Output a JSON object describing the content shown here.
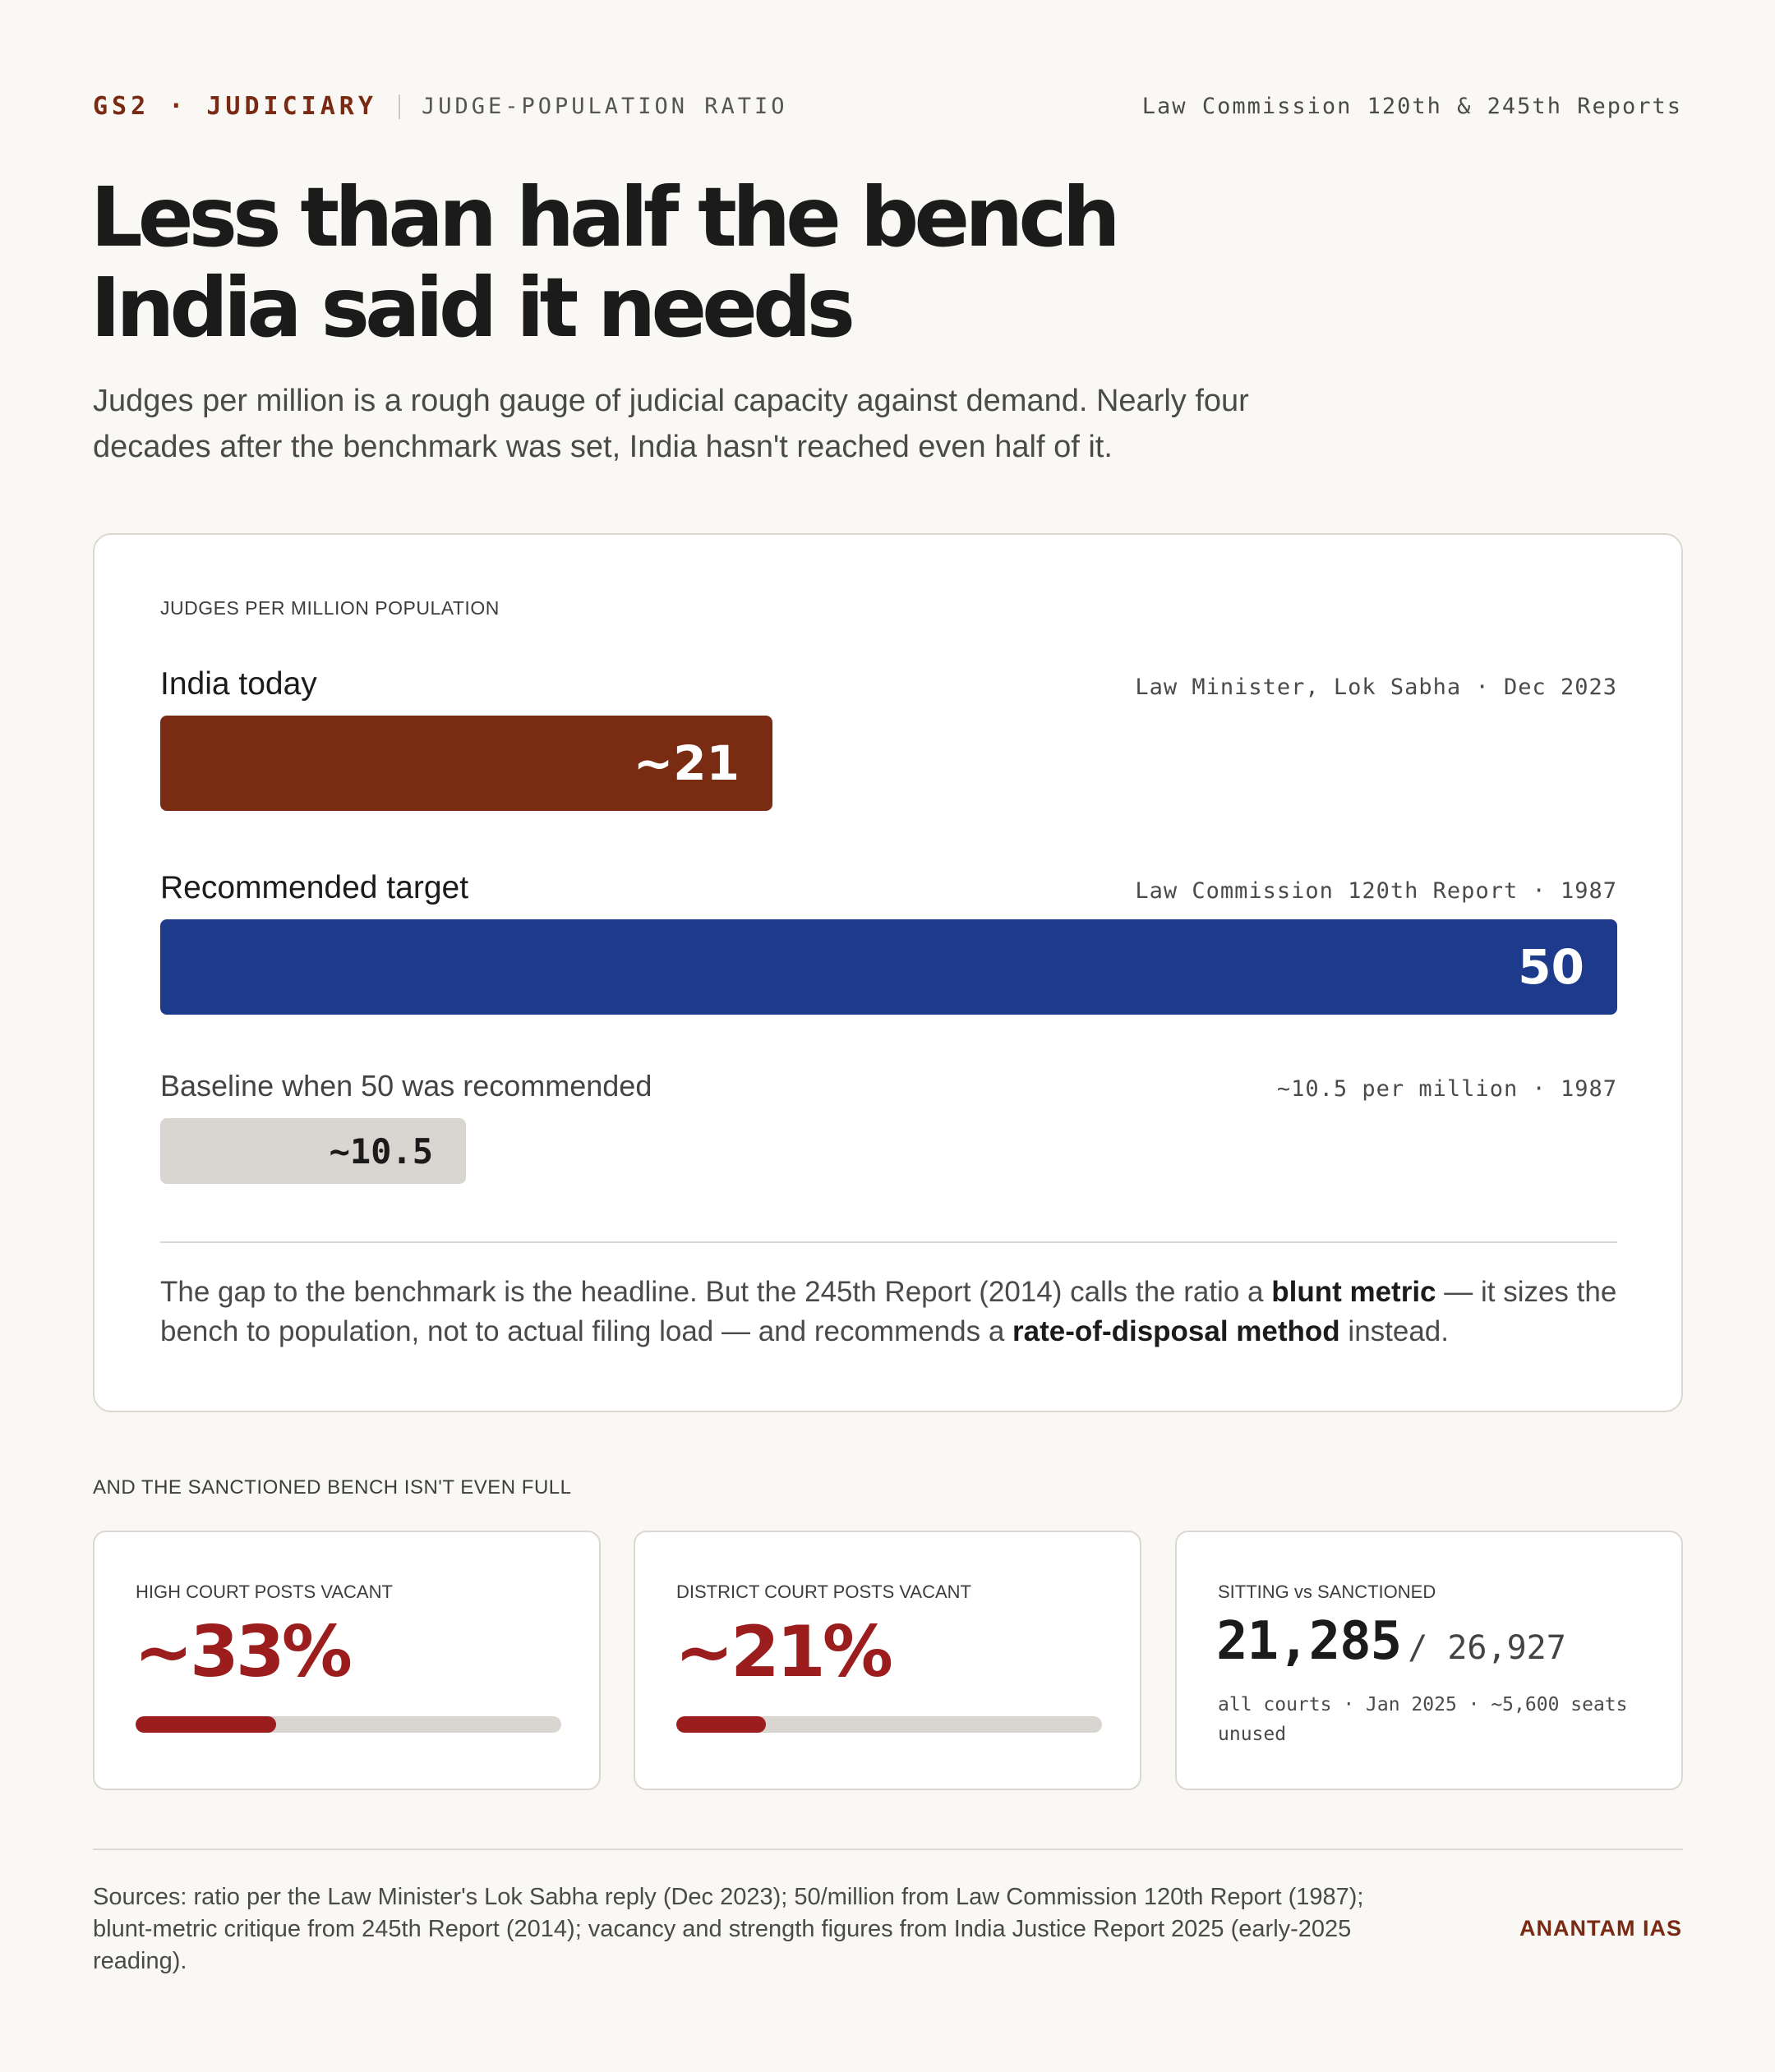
{
  "header": {
    "tag": "GS2 · JUDICIARY",
    "topic": "JUDGE-POPULATION RATIO",
    "source": "Law Commission 120th & 245th Reports"
  },
  "title_line1": "Less than half the bench",
  "title_line2": "India said it needs",
  "subtitle": "Judges per million is a rough gauge of judicial capacity against demand. Nearly four decades after the benchmark was set, India hasn't reached even half of it.",
  "chart_data": {
    "type": "bar",
    "orientation": "horizontal",
    "title": "JUDGES PER MILLION POPULATION",
    "categories": [
      "India today",
      "Recommended target",
      "Baseline when 50 was recommended"
    ],
    "values": [
      21,
      50,
      10.5
    ],
    "value_labels": [
      "~21",
      "50",
      "~10.5"
    ],
    "sources": [
      "Law Minister, Lok Sabha · Dec 2023",
      "Law Commission 120th Report · 1987",
      "~10.5 per million · 1987"
    ],
    "colors": [
      "#7a2c12",
      "#1e3a8a",
      "#d9d5d1"
    ],
    "xlim": [
      0,
      50
    ],
    "grid": false
  },
  "card_note": {
    "p1": "The gap to the benchmark is the headline. But the 245th Report (2014) calls the ratio a ",
    "b1": "blunt metric",
    "p2": " — it sizes the bench to population, not to actual filing load — and recommends a ",
    "b2": "rate-of-disposal method",
    "p3": " instead."
  },
  "vacancy": {
    "section_label": "AND THE SANCTIONED BENCH ISN'T EVEN FULL",
    "high_court": {
      "label": "HIGH COURT POSTS VACANT",
      "value_text": "~33%",
      "fraction": 0.33,
      "color": "#9b1d1d"
    },
    "district_court": {
      "label": "DISTRICT COURT POSTS VACANT",
      "value_text": "~21%",
      "fraction": 0.21,
      "color": "#9b1d1d"
    },
    "sitting": {
      "label": "SITTING vs SANCTIONED",
      "sitting": "21,285",
      "sanctioned": "/ 26,927",
      "note": "all courts · Jan 2025 · ~5,600 seats unused"
    }
  },
  "footer": {
    "sources": "Sources: ratio per the Law Minister's Lok Sabha reply (Dec 2023); 50/million from Law Commission 120th Report (1987); blunt-metric critique from 245th Report (2014); vacancy and strength figures from India Justice Report 2025 (early-2025 reading).",
    "brand": "ANANTAM IAS"
  }
}
